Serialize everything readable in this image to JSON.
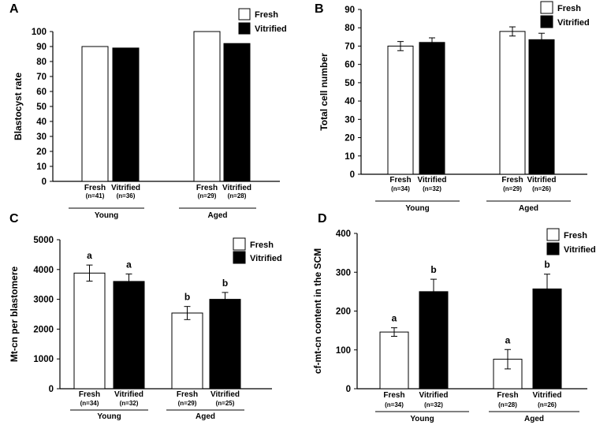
{
  "colors": {
    "fresh": "#ffffff",
    "vitrified": "#000000",
    "axis": "#000000"
  },
  "chart_data": [
    {
      "panel": "A",
      "type": "bar",
      "ylabel": "Blastocyst rate",
      "ylim": [
        0,
        100
      ],
      "yticks": [
        "0",
        "10",
        "20",
        "30",
        "40",
        "50",
        "60",
        "70",
        "80",
        "90",
        "100"
      ],
      "legend": [
        "Fresh",
        "Vitrified"
      ],
      "groups": [
        "Young",
        "Aged"
      ],
      "categories": [
        {
          "name": "Fresh",
          "n": "(n=41)"
        },
        {
          "name": "Vitrified",
          "n": "(n=36)"
        },
        {
          "name": "Fresh",
          "n": "(n=29)"
        },
        {
          "name": "Vitrified",
          "n": "(n=28)"
        }
      ],
      "values": [
        90,
        89,
        100,
        92
      ],
      "errors": null,
      "sig": null
    },
    {
      "panel": "B",
      "type": "bar",
      "ylabel": "Total cell number",
      "ylim": [
        0,
        90
      ],
      "yticks": [
        "0",
        "10",
        "20",
        "30",
        "40",
        "50",
        "60",
        "70",
        "80",
        "90"
      ],
      "legend": [
        "Fresh",
        "Vitrified"
      ],
      "groups": [
        "Young",
        "Aged"
      ],
      "categories": [
        {
          "name": "Fresh",
          "n": "(n=34)"
        },
        {
          "name": "Vitrified",
          "n": "(n=32)"
        },
        {
          "name": "Fresh",
          "n": "(n=29)"
        },
        {
          "name": "Vitrified",
          "n": "(n=26)"
        }
      ],
      "values": [
        70,
        72,
        78,
        73.5
      ],
      "errors": [
        2.5,
        2.5,
        2.5,
        3.5
      ],
      "sig": null
    },
    {
      "panel": "C",
      "type": "bar",
      "ylabel": "Mt-cn per blastomere",
      "ylim": [
        0,
        5000
      ],
      "yticks": [
        "0",
        "1000",
        "2000",
        "3000",
        "4000",
        "5000"
      ],
      "legend": [
        "Fresh",
        "Vitrified"
      ],
      "groups": [
        "Young",
        "Aged"
      ],
      "categories": [
        {
          "name": "Fresh",
          "n": "(n=34)"
        },
        {
          "name": "Vitrified",
          "n": "(n=32)"
        },
        {
          "name": "Fresh",
          "n": "(n=29)"
        },
        {
          "name": "Vitrified",
          "n": "(n=25)"
        }
      ],
      "values": [
        3880,
        3600,
        2540,
        3000
      ],
      "errors": [
        270,
        250,
        220,
        230
      ],
      "sig": [
        "a",
        "a",
        "b",
        "b"
      ]
    },
    {
      "panel": "D",
      "type": "bar",
      "ylabel": "cf-mt-cn content in the SCM",
      "ylim": [
        0,
        400
      ],
      "yticks": [
        "0",
        "100",
        "200",
        "300",
        "400"
      ],
      "legend": [
        "Fresh",
        "Vitrified"
      ],
      "groups": [
        "Young",
        "Aged"
      ],
      "categories": [
        {
          "name": "Fresh",
          "n": "(n=34)"
        },
        {
          "name": "Vitrified",
          "n": "(n=32)"
        },
        {
          "name": "Fresh",
          "n": "(n=28)"
        },
        {
          "name": "Vitrified",
          "n": "(n=26)"
        }
      ],
      "values": [
        146,
        250,
        76,
        257
      ],
      "errors": [
        11,
        32,
        25,
        38
      ],
      "sig": [
        "a",
        "b",
        "a",
        "b"
      ]
    }
  ]
}
